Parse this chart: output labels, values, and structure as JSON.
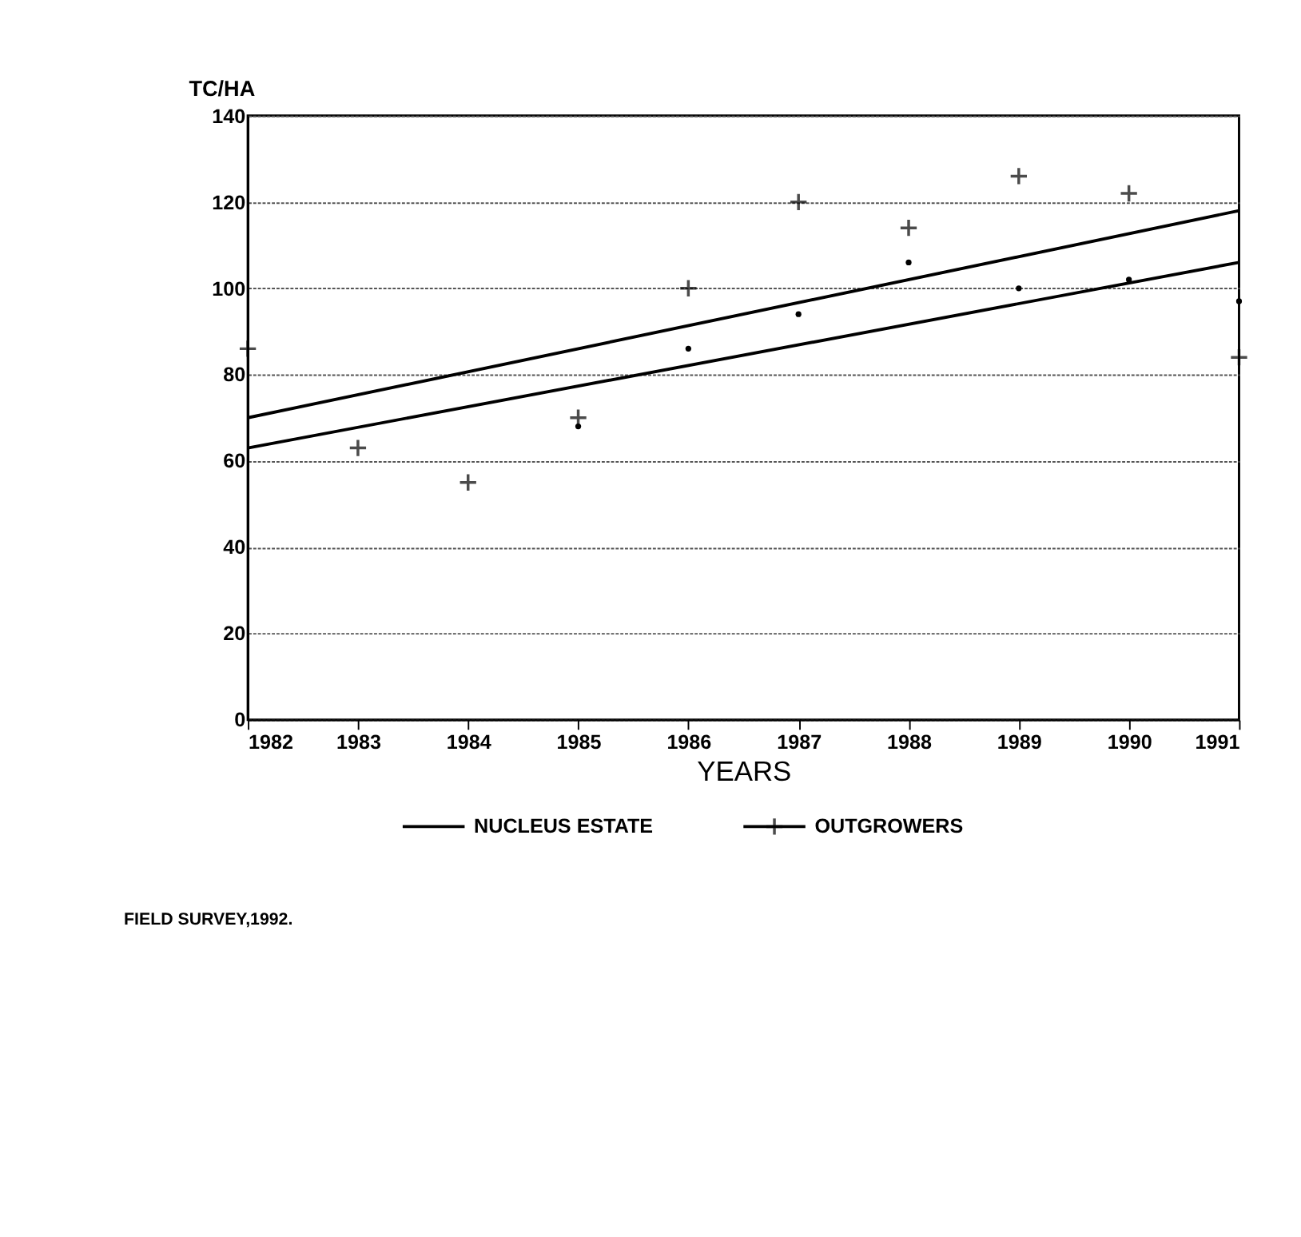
{
  "chart_data": {
    "type": "scatter",
    "xlabel": "YEARS",
    "ylabel": "TC/HA",
    "xlim": [
      1982,
      1991
    ],
    "xticks": [
      1982,
      1983,
      1984,
      1985,
      1986,
      1987,
      1988,
      1989,
      1990,
      1991
    ],
    "ylim": [
      0,
      140
    ],
    "yticks": [
      0,
      20,
      40,
      60,
      80,
      100,
      120,
      140
    ],
    "grid": "y",
    "legend": "bottom",
    "series": [
      {
        "name": "NUCLEUS ESTATE",
        "type": "line",
        "color": "#000000",
        "marker": "none",
        "line_style": "solid",
        "x": [
          1982,
          1991
        ],
        "values": [
          63,
          106
        ]
      },
      {
        "type": "line",
        "color": "#000000",
        "marker": "none",
        "line_style": "solid",
        "x": [
          1982,
          1991
        ],
        "values": [
          70,
          118
        ]
      },
      {
        "name": "OUTGROWERS",
        "color": "#000000",
        "marker": "cross",
        "x": [
          1982,
          1983,
          1984,
          1985,
          1986,
          1987,
          1988,
          1989,
          1990,
          1991
        ],
        "values": [
          86,
          63,
          55,
          70,
          100,
          120,
          114,
          126,
          122,
          84
        ]
      },
      {
        "color": "#000000",
        "marker": "circle",
        "x": [
          1985,
          1986,
          1987,
          1988,
          1989,
          1990,
          1991
        ],
        "values": [
          68,
          86,
          94,
          106,
          100,
          102,
          97
        ]
      }
    ],
    "annotations": [
      "FIELD SURVEY,1992."
    ]
  }
}
